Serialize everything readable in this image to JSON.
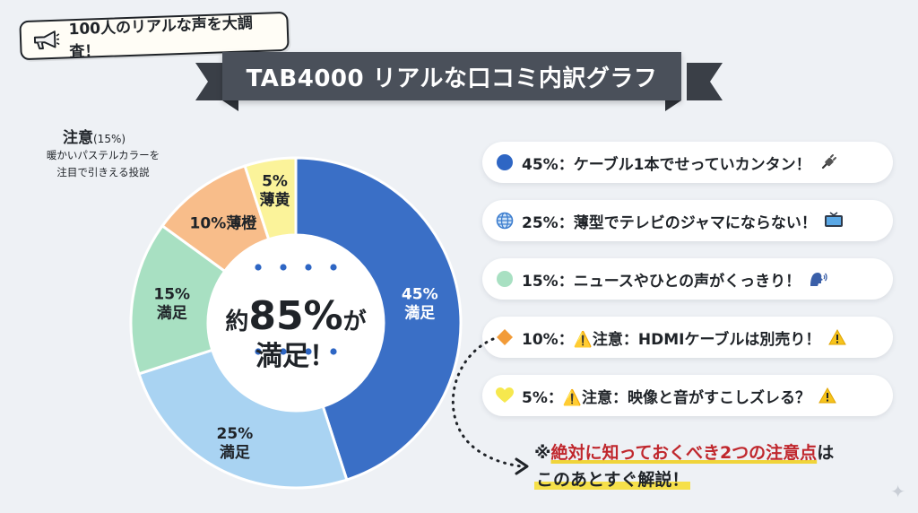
{
  "top_tag": {
    "text": "100人のリアルな声を大調査！",
    "icon": "megaphone-icon"
  },
  "banner": {
    "title": "TAB4000 リアルな口コミ内訳グラフ"
  },
  "caution_note": {
    "title": "注意",
    "pct": "(15%)",
    "desc_line1": "暖かいパステルカラーを",
    "desc_line2": "注目で引きえる投説"
  },
  "center": {
    "prefix": "約",
    "number": "85%",
    "suffix": "が",
    "line2": "満足！"
  },
  "chart_data": {
    "type": "pie",
    "donut": true,
    "categories": [
      "45%満足",
      "25%満足",
      "15%満足",
      "10%薄橙",
      "5%薄黄"
    ],
    "values": [
      45,
      25,
      15,
      10,
      5
    ],
    "slice_labels": [
      [
        "45%",
        "満足"
      ],
      [
        "25%",
        "満足"
      ],
      [
        "15%",
        "満足"
      ],
      [
        "10%薄橙"
      ],
      [
        "5%",
        "薄黄"
      ]
    ],
    "colors": [
      "#3a6fc6",
      "#a9d3f2",
      "#a8e0c2",
      "#f8bd8a",
      "#fbf39a"
    ]
  },
  "legend": [
    {
      "marker": "circle",
      "color": "#2e66c4",
      "text": "45%：ケーブル1本でせっていカンタン！",
      "end_icon": "plug-icon"
    },
    {
      "marker": "globe",
      "color": "#3f7fd0",
      "text": "25%：薄型でテレビのジャマにならない！",
      "end_icon": "tv-icon"
    },
    {
      "marker": "circle",
      "color": "#a8e0c2",
      "text": "15%：ニュースやひとの声がくっきり！",
      "end_icon": "speaking-head-icon"
    },
    {
      "marker": "diamond",
      "color": "#f29b38",
      "text": "10%：⚠️注意：HDMIケーブルは別売り！",
      "end_icon": "warning-icon"
    },
    {
      "marker": "heart",
      "color": "#f6e84e",
      "text": " 5%：⚠️注意：映像と音がすこしズレる？",
      "end_icon": "warning-icon"
    }
  ],
  "note": {
    "line1_prefix": "※",
    "line1_red": "絶対に知っておくべき2つの注意点",
    "line1_suffix": "は",
    "line2": "このあとすぐ解説！"
  }
}
